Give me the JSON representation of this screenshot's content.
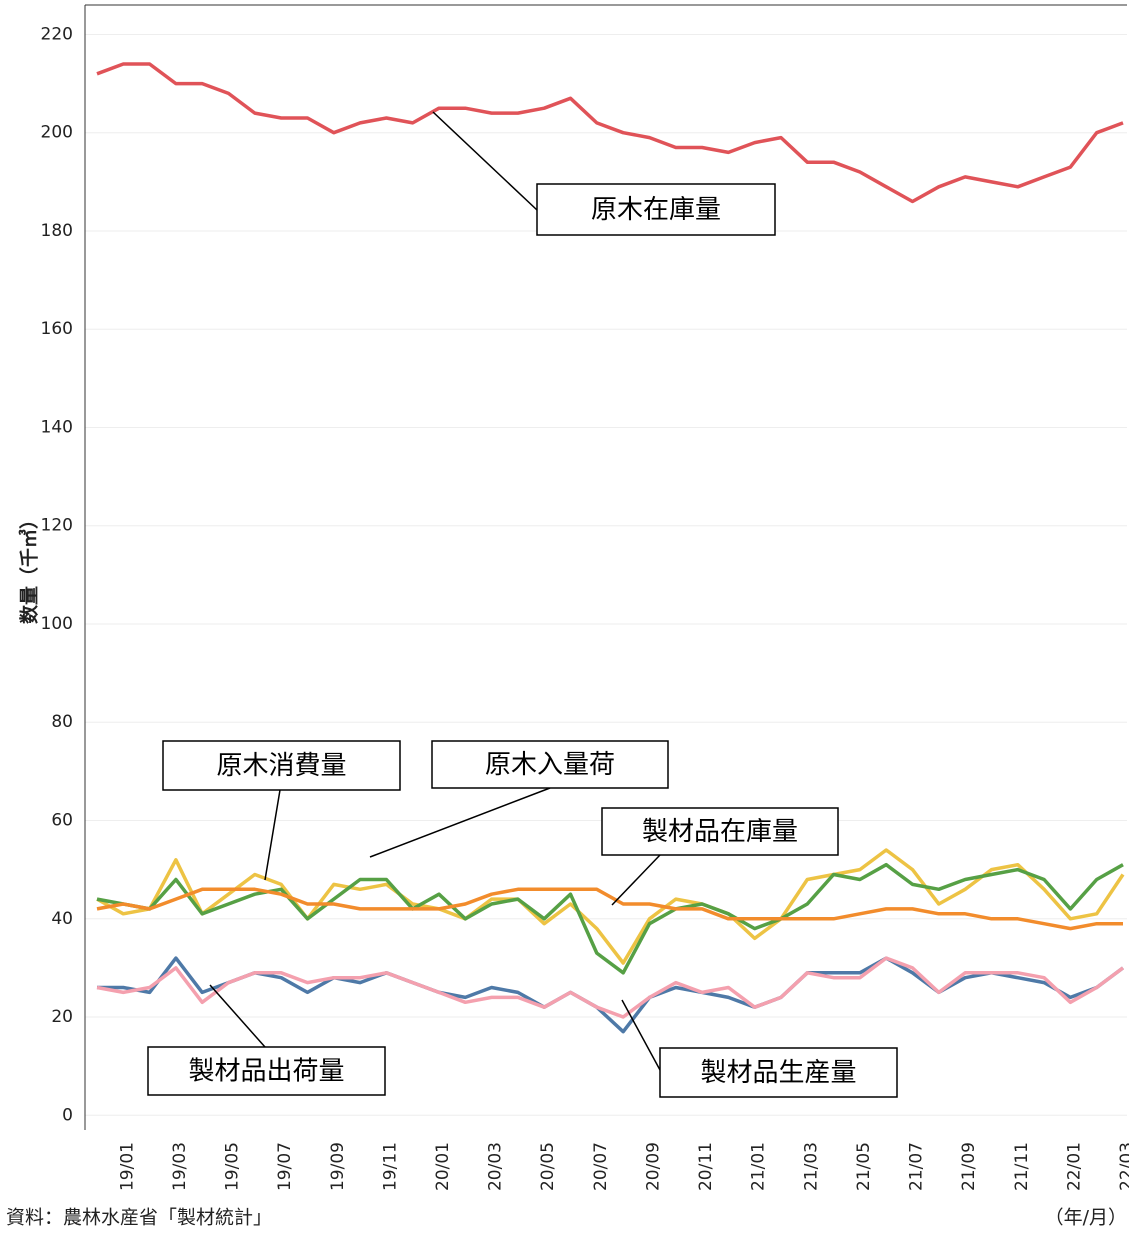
{
  "chart_data": {
    "type": "line",
    "y_label": "数量（千㎥）",
    "x_unit": "（年/月）",
    "source": "資料：農林水産省「製材統計」",
    "categories": [
      null,
      "19/01",
      null,
      "19/03",
      null,
      "19/05",
      null,
      "19/07",
      null,
      "19/09",
      null,
      "19/11",
      null,
      "20/01",
      null,
      "20/03",
      null,
      "20/05",
      null,
      "20/07",
      null,
      "20/09",
      null,
      "20/11",
      null,
      "21/01",
      null,
      "21/03",
      null,
      "21/05",
      null,
      "21/07",
      null,
      "21/09",
      null,
      "21/11",
      null,
      "22/01",
      null,
      "22/03"
    ],
    "ylim": [
      -3,
      226
    ],
    "yticks": [
      0,
      20,
      40,
      60,
      80,
      100,
      120,
      140,
      160,
      180,
      200,
      220
    ],
    "grid": true,
    "series": [
      {
        "name": "原木在庫量",
        "color": "#e05358",
        "values": [
          212,
          214,
          214,
          210,
          210,
          208,
          204,
          203,
          203,
          200,
          202,
          203,
          202,
          205,
          205,
          204,
          204,
          205,
          207,
          202,
          200,
          199,
          197,
          197,
          196,
          198,
          199,
          194,
          194,
          192,
          189,
          186,
          189,
          191,
          190,
          189,
          191,
          193,
          200,
          202
        ]
      },
      {
        "name": "原木消費量",
        "color": "#edc344",
        "values": [
          44,
          41,
          42,
          52,
          41,
          45,
          49,
          47,
          40,
          47,
          46,
          47,
          43,
          42,
          40,
          44,
          44,
          39,
          43,
          38,
          31,
          40,
          44,
          43,
          41,
          36,
          40,
          48,
          49,
          50,
          54,
          50,
          43,
          46,
          50,
          51,
          46,
          40,
          41,
          49
        ]
      },
      {
        "name": "原木入量荷",
        "color": "#56a045",
        "values": [
          44,
          43,
          42,
          48,
          41,
          43,
          45,
          46,
          40,
          44,
          48,
          48,
          42,
          45,
          40,
          43,
          44,
          40,
          45,
          33,
          29,
          39,
          42,
          43,
          41,
          38,
          40,
          43,
          49,
          48,
          51,
          47,
          46,
          48,
          49,
          50,
          48,
          42,
          48,
          51
        ]
      },
      {
        "name": "製材品在庫量",
        "color": "#f28c2c",
        "values": [
          42,
          43,
          42,
          44,
          46,
          46,
          46,
          45,
          43,
          43,
          42,
          42,
          42,
          42,
          43,
          45,
          46,
          46,
          46,
          46,
          43,
          43,
          42,
          42,
          40,
          40,
          40,
          40,
          40,
          41,
          42,
          42,
          41,
          41,
          40,
          40,
          39,
          38,
          39,
          39
        ]
      },
      {
        "name": "製材品出荷量",
        "color": "#4e79a7",
        "values": [
          26,
          26,
          25,
          32,
          25,
          27,
          29,
          28,
          25,
          28,
          27,
          29,
          27,
          25,
          24,
          26,
          25,
          22,
          25,
          22,
          17,
          24,
          26,
          25,
          24,
          22,
          24,
          29,
          29,
          29,
          32,
          29,
          25,
          28,
          29,
          28,
          27,
          24,
          26,
          30
        ]
      },
      {
        "name": "製材品生産量",
        "color": "#f4a0ae",
        "values": [
          26,
          25,
          26,
          30,
          23,
          27,
          29,
          29,
          27,
          28,
          28,
          29,
          27,
          25,
          23,
          24,
          24,
          22,
          25,
          22,
          20,
          24,
          27,
          25,
          26,
          22,
          24,
          29,
          28,
          28,
          32,
          30,
          25,
          29,
          29,
          29,
          28,
          23,
          26,
          30
        ]
      }
    ]
  }
}
